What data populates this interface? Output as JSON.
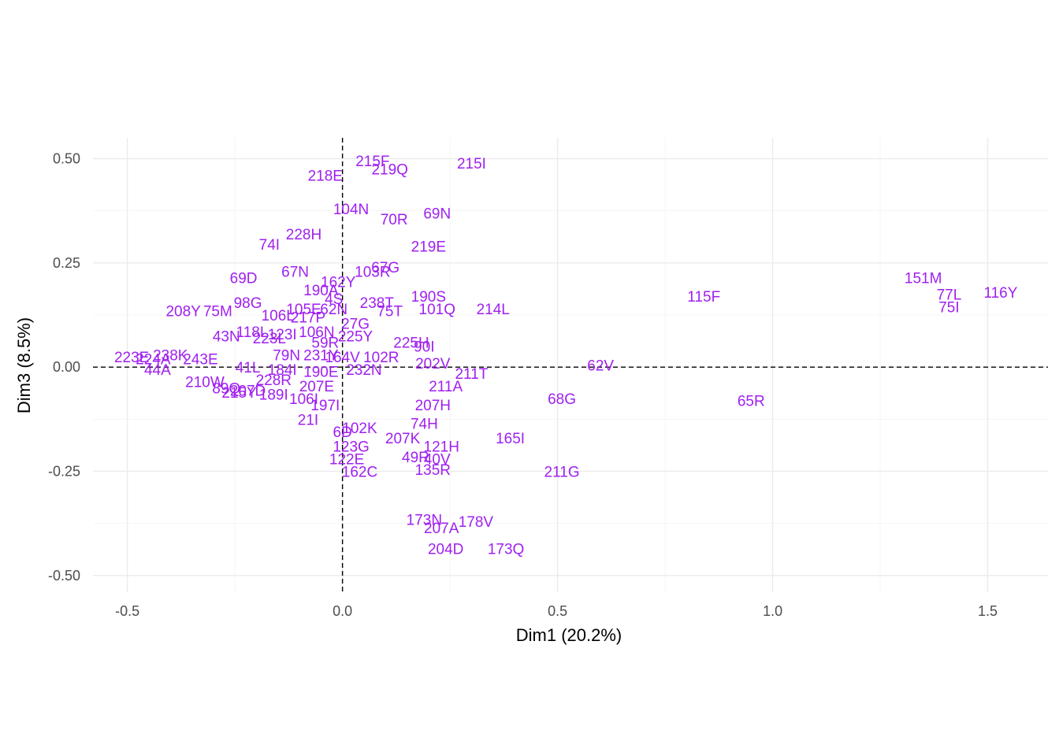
{
  "colors": {
    "label": "#a020f0",
    "grid": "#ebebeb",
    "tick_text": "#4d4d4d"
  },
  "chart_data": {
    "type": "scatter",
    "title": "",
    "xlabel": "Dim1 (20.2%)",
    "ylabel": "Dim3 (8.5%)",
    "xlim": [
      -0.58,
      1.64
    ],
    "ylim": [
      -0.54,
      0.55
    ],
    "x_ticks": [
      -0.5,
      0.0,
      0.5,
      1.0,
      1.5
    ],
    "x_tick_labels": [
      "-0.5",
      "0.0",
      "0.5",
      "1.0",
      "1.5"
    ],
    "y_ticks": [
      -0.5,
      -0.25,
      0.0,
      0.25,
      0.5
    ],
    "y_tick_labels": [
      "-0.50",
      "-0.25",
      "0.00",
      "0.25",
      "0.50"
    ],
    "reference_lines": {
      "x": 0.0,
      "y": 0.0,
      "style": "dashed"
    },
    "grid": true,
    "points": [
      {
        "label": "215I",
        "x": 0.3,
        "y": 0.49
      },
      {
        "label": "215F",
        "x": 0.07,
        "y": 0.495
      },
      {
        "label": "219Q",
        "x": 0.11,
        "y": 0.475
      },
      {
        "label": "218E",
        "x": -0.04,
        "y": 0.46
      },
      {
        "label": "104N",
        "x": 0.02,
        "y": 0.38
      },
      {
        "label": "69N",
        "x": 0.22,
        "y": 0.37
      },
      {
        "label": "70R",
        "x": 0.12,
        "y": 0.355
      },
      {
        "label": "228H",
        "x": -0.09,
        "y": 0.32
      },
      {
        "label": "219E",
        "x": 0.2,
        "y": 0.29
      },
      {
        "label": "74I",
        "x": -0.17,
        "y": 0.295
      },
      {
        "label": "67N",
        "x": -0.11,
        "y": 0.23
      },
      {
        "label": "103R",
        "x": 0.07,
        "y": 0.23
      },
      {
        "label": "67G",
        "x": 0.1,
        "y": 0.24
      },
      {
        "label": "69D",
        "x": -0.23,
        "y": 0.215
      },
      {
        "label": "162Y",
        "x": -0.01,
        "y": 0.205
      },
      {
        "label": "190A",
        "x": -0.05,
        "y": 0.185
      },
      {
        "label": "190S",
        "x": 0.2,
        "y": 0.17
      },
      {
        "label": "4S",
        "x": -0.02,
        "y": 0.165
      },
      {
        "label": "238T",
        "x": 0.08,
        "y": 0.155
      },
      {
        "label": "98G",
        "x": -0.22,
        "y": 0.155
      },
      {
        "label": "75T",
        "x": 0.11,
        "y": 0.135
      },
      {
        "label": "101Q",
        "x": 0.22,
        "y": 0.14
      },
      {
        "label": "214L",
        "x": 0.35,
        "y": 0.14
      },
      {
        "label": "75M",
        "x": -0.29,
        "y": 0.135
      },
      {
        "label": "208Y",
        "x": -0.37,
        "y": 0.135
      },
      {
        "label": "105E",
        "x": -0.09,
        "y": 0.14
      },
      {
        "label": "62N",
        "x": -0.02,
        "y": 0.14
      },
      {
        "label": "106L",
        "x": -0.15,
        "y": 0.125
      },
      {
        "label": "217P",
        "x": -0.08,
        "y": 0.12
      },
      {
        "label": "27G",
        "x": 0.03,
        "y": 0.105
      },
      {
        "label": "118L",
        "x": -0.21,
        "y": 0.085
      },
      {
        "label": "43N",
        "x": -0.27,
        "y": 0.075
      },
      {
        "label": "123I",
        "x": -0.14,
        "y": 0.08
      },
      {
        "label": "223L",
        "x": -0.17,
        "y": 0.07
      },
      {
        "label": "106N",
        "x": -0.06,
        "y": 0.085
      },
      {
        "label": "225Y",
        "x": 0.03,
        "y": 0.075
      },
      {
        "label": "59R",
        "x": -0.04,
        "y": 0.06
      },
      {
        "label": "225H",
        "x": 0.16,
        "y": 0.06
      },
      {
        "label": "90I",
        "x": 0.19,
        "y": 0.05
      },
      {
        "label": "223E",
        "x": -0.49,
        "y": 0.025
      },
      {
        "label": "238K",
        "x": -0.4,
        "y": 0.03
      },
      {
        "label": "224A",
        "x": -0.44,
        "y": 0.02
      },
      {
        "label": "243E",
        "x": -0.33,
        "y": 0.02
      },
      {
        "label": "79N",
        "x": -0.13,
        "y": 0.03
      },
      {
        "label": "231Y",
        "x": -0.05,
        "y": 0.03
      },
      {
        "label": "164V",
        "x": 0.0,
        "y": 0.025
      },
      {
        "label": "102R",
        "x": 0.09,
        "y": 0.025
      },
      {
        "label": "202V",
        "x": 0.21,
        "y": 0.01
      },
      {
        "label": "62V",
        "x": 0.6,
        "y": 0.005
      },
      {
        "label": "44A",
        "x": -0.43,
        "y": -0.005
      },
      {
        "label": "41L",
        "x": -0.22,
        "y": 0.0
      },
      {
        "label": "184I",
        "x": -0.14,
        "y": -0.005
      },
      {
        "label": "190E",
        "x": -0.05,
        "y": -0.01
      },
      {
        "label": "232N",
        "x": 0.05,
        "y": -0.005
      },
      {
        "label": "211T",
        "x": 0.3,
        "y": -0.015
      },
      {
        "label": "210W",
        "x": -0.32,
        "y": -0.035
      },
      {
        "label": "228R",
        "x": -0.16,
        "y": -0.03
      },
      {
        "label": "89Q",
        "x": -0.27,
        "y": -0.05
      },
      {
        "label": "207D",
        "x": -0.22,
        "y": -0.055
      },
      {
        "label": "211A",
        "x": 0.24,
        "y": -0.045
      },
      {
        "label": "207E",
        "x": -0.06,
        "y": -0.045
      },
      {
        "label": "215Y",
        "x": -0.24,
        "y": -0.06
      },
      {
        "label": "189I",
        "x": -0.16,
        "y": -0.065
      },
      {
        "label": "106I",
        "x": -0.09,
        "y": -0.075
      },
      {
        "label": "68G",
        "x": 0.51,
        "y": -0.075
      },
      {
        "label": "65R",
        "x": 0.95,
        "y": -0.08
      },
      {
        "label": "197I",
        "x": -0.04,
        "y": -0.09
      },
      {
        "label": "207H",
        "x": 0.21,
        "y": -0.09
      },
      {
        "label": "21I",
        "x": -0.08,
        "y": -0.125
      },
      {
        "label": "74H",
        "x": 0.19,
        "y": -0.135
      },
      {
        "label": "6D",
        "x": 0.0,
        "y": -0.155
      },
      {
        "label": "102K",
        "x": 0.04,
        "y": -0.145
      },
      {
        "label": "165I",
        "x": 0.39,
        "y": -0.17
      },
      {
        "label": "207K",
        "x": 0.14,
        "y": -0.17
      },
      {
        "label": "121H",
        "x": 0.23,
        "y": -0.19
      },
      {
        "label": "123G",
        "x": 0.02,
        "y": -0.19
      },
      {
        "label": "49R",
        "x": 0.17,
        "y": -0.215
      },
      {
        "label": "40V",
        "x": 0.22,
        "y": -0.22
      },
      {
        "label": "122E",
        "x": 0.01,
        "y": -0.22
      },
      {
        "label": "135R",
        "x": 0.21,
        "y": -0.245
      },
      {
        "label": "211G",
        "x": 0.51,
        "y": -0.25
      },
      {
        "label": "162C",
        "x": 0.04,
        "y": -0.25
      },
      {
        "label": "173N",
        "x": 0.19,
        "y": -0.365
      },
      {
        "label": "178V",
        "x": 0.31,
        "y": -0.37
      },
      {
        "label": "207A",
        "x": 0.23,
        "y": -0.385
      },
      {
        "label": "204D",
        "x": 0.24,
        "y": -0.435
      },
      {
        "label": "173Q",
        "x": 0.38,
        "y": -0.435
      },
      {
        "label": "115F",
        "x": 0.84,
        "y": 0.17
      },
      {
        "label": "151M",
        "x": 1.35,
        "y": 0.215
      },
      {
        "label": "77L",
        "x": 1.41,
        "y": 0.175
      },
      {
        "label": "75I",
        "x": 1.41,
        "y": 0.145
      },
      {
        "label": "116Y",
        "x": 1.53,
        "y": 0.18
      }
    ]
  }
}
